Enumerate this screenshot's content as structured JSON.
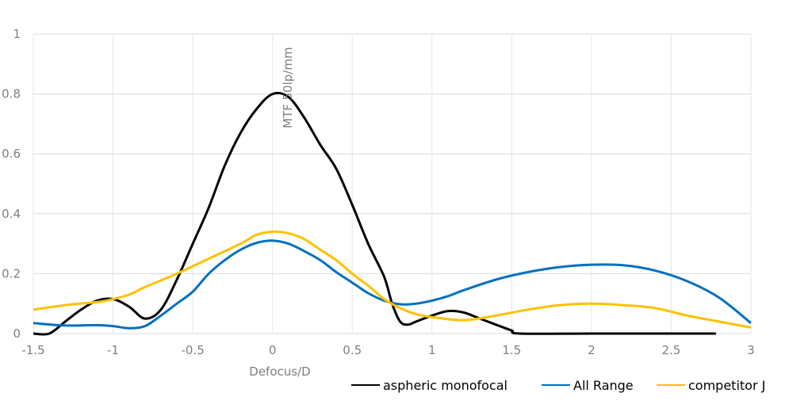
{
  "chart_data": {
    "type": "line",
    "title": "",
    "xlabel": "Defocus/D",
    "ylabel": "MTF 50lp/mm",
    "xlim": [
      -1.5,
      3
    ],
    "ylim": [
      0,
      1
    ],
    "xticks": [
      "-1.5",
      "-1",
      "-0.5",
      "0",
      "0.5",
      "1",
      "1.5",
      "2",
      "2.5",
      "3"
    ],
    "xtick_values": [
      -1.5,
      -1,
      -0.5,
      0,
      0.5,
      1,
      1.5,
      2,
      2.5,
      3
    ],
    "yticks": [
      "0",
      "0.2",
      "0.4",
      "0.6",
      "0.8",
      "1"
    ],
    "ytick_values": [
      0,
      0.2,
      0.4,
      0.6,
      0.8,
      1
    ],
    "grid": true,
    "legend_position": "bottom-right",
    "series": [
      {
        "name": "aspheric monofocal",
        "color": "#000000",
        "x": [
          -1.5,
          -1.4,
          -1.3,
          -1.2,
          -1.1,
          -1.0,
          -0.9,
          -0.8,
          -0.7,
          -0.6,
          -0.5,
          -0.4,
          -0.3,
          -0.2,
          -0.1,
          0,
          0.1,
          0.2,
          0.3,
          0.4,
          0.5,
          0.6,
          0.7,
          0.75,
          0.8,
          0.85,
          0.9,
          1.0,
          1.1,
          1.2,
          1.3,
          1.4,
          1.5,
          1.55,
          2.0,
          2.5,
          2.78
        ],
        "y": [
          0,
          0,
          0.04,
          0.08,
          0.11,
          0.115,
          0.09,
          0.05,
          0.08,
          0.18,
          0.3,
          0.42,
          0.56,
          0.67,
          0.75,
          0.8,
          0.79,
          0.72,
          0.63,
          0.55,
          0.43,
          0.3,
          0.19,
          0.1,
          0.04,
          0.03,
          0.04,
          0.06,
          0.075,
          0.07,
          0.05,
          0.03,
          0.01,
          0,
          0,
          0,
          0
        ]
      },
      {
        "name": "All Range",
        "color": "#0070c0",
        "x": [
          -1.5,
          -1.3,
          -1.1,
          -1.0,
          -0.9,
          -0.8,
          -0.7,
          -0.6,
          -0.5,
          -0.4,
          -0.3,
          -0.2,
          -0.1,
          0,
          0.1,
          0.2,
          0.3,
          0.4,
          0.5,
          0.6,
          0.7,
          0.8,
          0.9,
          1.0,
          1.1,
          1.2,
          1.4,
          1.6,
          1.8,
          2.0,
          2.2,
          2.4,
          2.6,
          2.8,
          3.0
        ],
        "y": [
          0.035,
          0.027,
          0.028,
          0.025,
          0.018,
          0.025,
          0.06,
          0.1,
          0.14,
          0.2,
          0.245,
          0.28,
          0.303,
          0.31,
          0.3,
          0.275,
          0.245,
          0.205,
          0.17,
          0.135,
          0.11,
          0.098,
          0.1,
          0.11,
          0.125,
          0.145,
          0.18,
          0.205,
          0.222,
          0.23,
          0.228,
          0.21,
          0.175,
          0.12,
          0.035
        ]
      },
      {
        "name": "competitor J",
        "color": "#ffc000",
        "x": [
          -1.5,
          -1.3,
          -1.1,
          -1.0,
          -0.9,
          -0.8,
          -0.6,
          -0.4,
          -0.2,
          -0.1,
          0,
          0.1,
          0.2,
          0.3,
          0.4,
          0.5,
          0.6,
          0.7,
          0.8,
          0.9,
          1.0,
          1.2,
          1.4,
          1.6,
          1.8,
          2.0,
          2.2,
          2.4,
          2.6,
          2.8,
          3.0
        ],
        "y": [
          0.08,
          0.095,
          0.105,
          0.115,
          0.13,
          0.155,
          0.2,
          0.25,
          0.3,
          0.33,
          0.34,
          0.335,
          0.315,
          0.28,
          0.245,
          0.2,
          0.16,
          0.115,
          0.085,
          0.065,
          0.055,
          0.045,
          0.06,
          0.08,
          0.095,
          0.1,
          0.095,
          0.085,
          0.06,
          0.04,
          0.02
        ]
      }
    ]
  }
}
